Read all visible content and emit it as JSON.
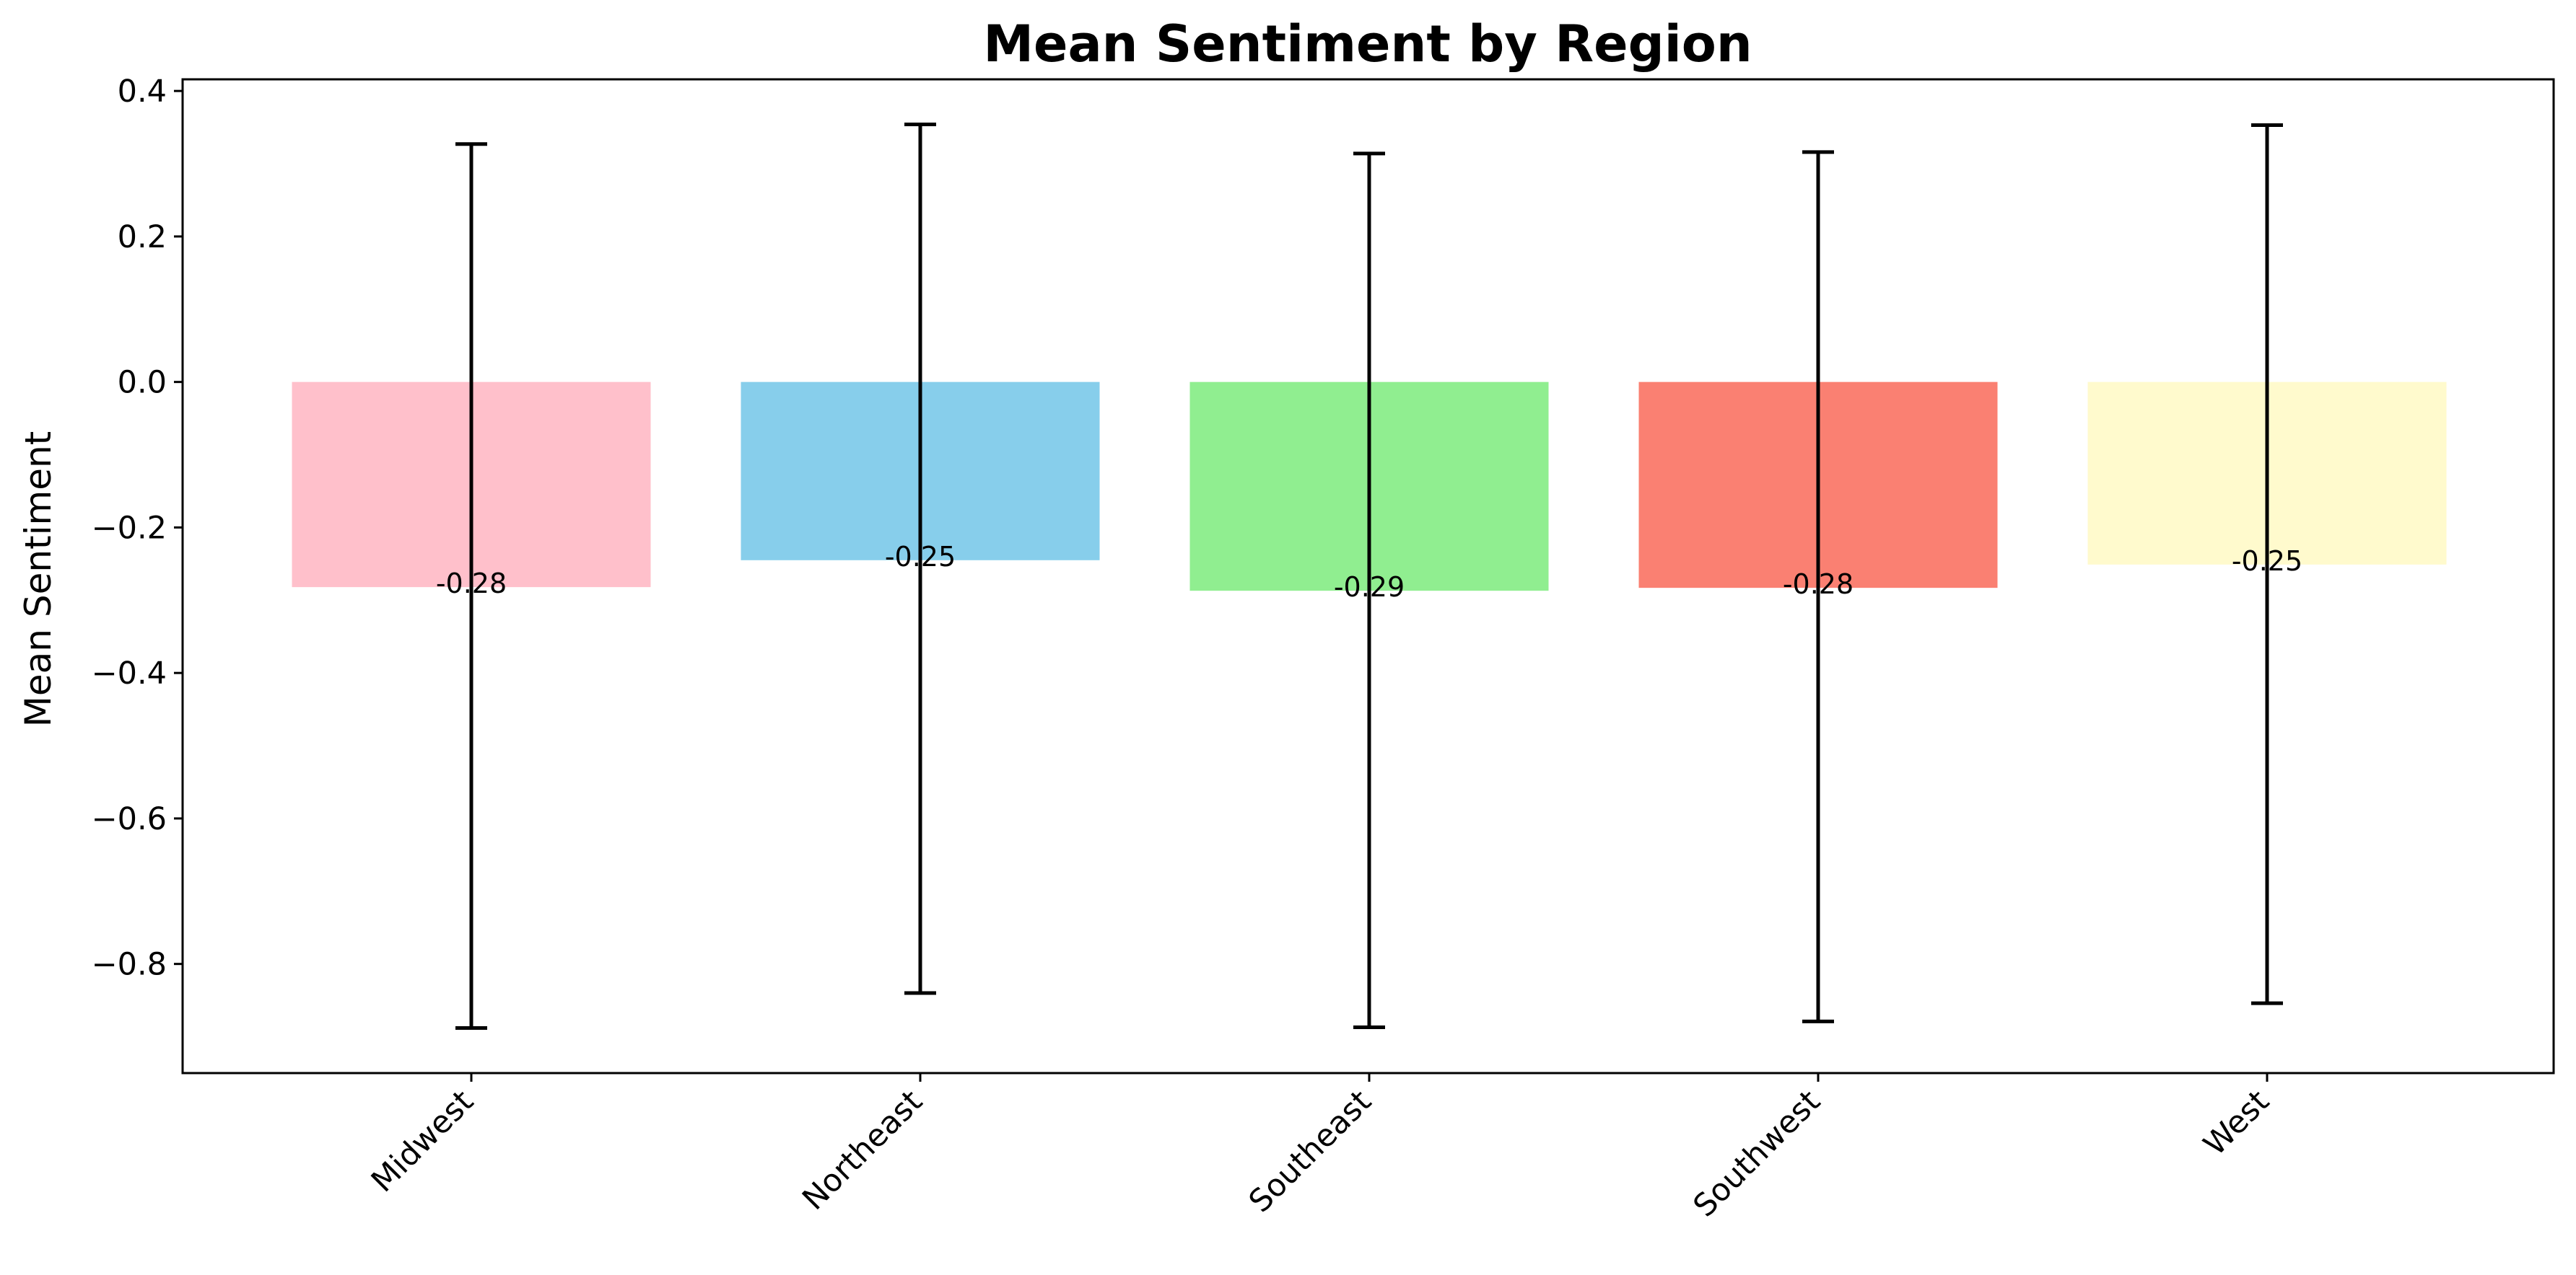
{
  "chart_data": {
    "type": "bar",
    "title": "Mean Sentiment by Region",
    "xlabel": "",
    "ylabel": "Mean Sentiment",
    "categories": [
      "Midwest",
      "Northeast",
      "Southeast",
      "Southwest",
      "West"
    ],
    "values": [
      -0.282,
      -0.245,
      -0.287,
      -0.283,
      -0.251
    ],
    "value_labels": [
      "-0.28",
      "-0.25",
      "-0.29",
      "-0.28",
      "-0.25"
    ],
    "error_bars": {
      "lower": [
        -0.888,
        -0.84,
        -0.887,
        -0.879,
        -0.854
      ],
      "upper": [
        0.327,
        0.354,
        0.314,
        0.316,
        0.353
      ]
    },
    "colors": [
      "#ffc0cb",
      "#87ceeb",
      "#90ee90",
      "#fa8072",
      "#fffacd"
    ],
    "ylim": [
      -0.95,
      0.416
    ],
    "yticks": [
      0.4,
      0.2,
      0.0,
      -0.2,
      -0.4,
      -0.6,
      -0.8
    ],
    "ytick_labels": [
      "0.4",
      "0.2",
      "0.0",
      "−0.2",
      "−0.4",
      "−0.6",
      "−0.8"
    ],
    "grid": false,
    "legend": "none"
  }
}
